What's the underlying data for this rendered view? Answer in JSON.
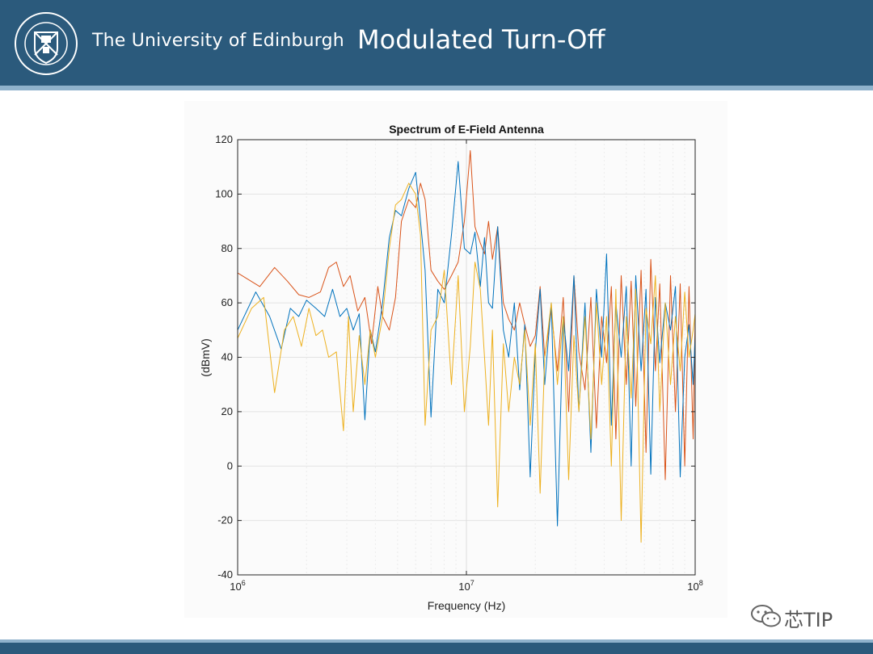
{
  "header": {
    "university_name": "The University of Edinburgh",
    "crest_text": "THE UNIVERSITY OF EDINBURGH",
    "slide_title": "Modulated Turn-Off",
    "bg_color": "#2b5a7c",
    "accent_color": "#8fb2cc"
  },
  "watermark": {
    "text": "芯TIP",
    "icon": "wechat-icon"
  },
  "chart_data": {
    "type": "line",
    "title": "Spectrum of E-Field Antenna",
    "xlabel": "Frequency (Hz)",
    "ylabel": "(dBmV)",
    "xscale": "log",
    "xlim": [
      1000000,
      100000000
    ],
    "ylim": [
      -40,
      120
    ],
    "grid": true,
    "legend": "none",
    "x_ticks": [
      {
        "base": "10",
        "exp": "6"
      },
      {
        "base": "10",
        "exp": "7"
      },
      {
        "base": "10",
        "exp": "8"
      }
    ],
    "y_ticks": [
      "120",
      "100",
      "80",
      "60",
      "40",
      "20",
      "0",
      "-20",
      "-40"
    ],
    "series": [
      {
        "color": "#d95319",
        "x": [
          1000000,
          1250000,
          1450000,
          1650000,
          1850000,
          2050000,
          2300000,
          2500000,
          2700000,
          2900000,
          3100000,
          3350000,
          3600000,
          3850000,
          4100000,
          4300000,
          4600000,
          4900000,
          5200000,
          5600000,
          6000000,
          6300000,
          6600000,
          7000000,
          7500000,
          8000000,
          8600000,
          9200000,
          9800000,
          10400000,
          10900000,
          11500000,
          12000000,
          12500000,
          13000000,
          13700000,
          14500000,
          15300000,
          16200000,
          17100000,
          18000000,
          19000000,
          20000000,
          21000000,
          22000000,
          23500000,
          25000000,
          26500000,
          28000000,
          29500000,
          31000000,
          33000000,
          35000000,
          37000000,
          39000000,
          41000000,
          43000000,
          45000000,
          47500000,
          50000000,
          52500000,
          55000000,
          58000000,
          61000000,
          64000000,
          67000000,
          70000000,
          74000000,
          78000000,
          82000000,
          86000000,
          90000000,
          94000000,
          98000000,
          100000000
        ],
        "y": [
          71,
          66,
          73,
          68,
          63,
          62,
          64,
          73,
          75,
          66,
          70,
          57,
          62,
          45,
          66,
          55,
          50,
          62,
          90,
          98,
          95,
          104,
          98,
          72,
          68,
          65,
          70,
          75,
          90,
          116,
          88,
          82,
          78,
          90,
          76,
          88,
          60,
          54,
          50,
          60,
          52,
          44,
          48,
          66,
          40,
          57,
          35,
          62,
          20,
          70,
          42,
          28,
          62,
          14,
          55,
          38,
          66,
          10,
          70,
          30,
          68,
          22,
          72,
          5,
          76,
          35,
          67,
          -5,
          70,
          20,
          67,
          0,
          66,
          10,
          55
        ]
      },
      {
        "color": "#0072bd",
        "x": [
          1000000,
          1200000,
          1380000,
          1550000,
          1700000,
          1850000,
          2000000,
          2200000,
          2400000,
          2600000,
          2800000,
          3000000,
          3200000,
          3400000,
          3600000,
          3800000,
          4000000,
          4300000,
          4600000,
          4900000,
          5200000,
          5600000,
          6000000,
          6300000,
          6600000,
          7000000,
          7500000,
          8000000,
          8600000,
          9200000,
          9800000,
          10400000,
          10900000,
          11500000,
          12000000,
          12500000,
          13000000,
          13700000,
          14500000,
          15300000,
          16200000,
          17100000,
          18000000,
          19000000,
          20000000,
          21000000,
          22000000,
          23500000,
          25000000,
          26500000,
          28000000,
          29500000,
          31000000,
          33000000,
          35000000,
          37000000,
          39000000,
          41000000,
          43000000,
          45000000,
          47500000,
          50000000,
          52500000,
          55000000,
          58000000,
          61000000,
          64000000,
          67000000,
          70000000,
          74000000,
          78000000,
          82000000,
          86000000,
          90000000,
          94000000,
          98000000,
          100000000
        ],
        "y": [
          50,
          64,
          55,
          43,
          58,
          55,
          61,
          58,
          55,
          65,
          55,
          58,
          50,
          56,
          17,
          50,
          42,
          60,
          84,
          94,
          92,
          102,
          108,
          90,
          72,
          18,
          65,
          60,
          85,
          112,
          80,
          78,
          86,
          66,
          84,
          60,
          58,
          88,
          50,
          40,
          60,
          28,
          52,
          -4,
          42,
          65,
          30,
          60,
          -22,
          55,
          35,
          70,
          20,
          60,
          5,
          65,
          40,
          78,
          15,
          60,
          40,
          66,
          0,
          70,
          35,
          65,
          -3,
          62,
          38,
          60,
          50,
          66,
          -4,
          40,
          52,
          30,
          48
        ]
      },
      {
        "color": "#edb120",
        "x": [
          1000000,
          1150000,
          1300000,
          1450000,
          1600000,
          1750000,
          1900000,
          2050000,
          2200000,
          2350000,
          2500000,
          2700000,
          2900000,
          3050000,
          3200000,
          3400000,
          3600000,
          3800000,
          4000000,
          4300000,
          4600000,
          4900000,
          5200000,
          5600000,
          6000000,
          6300000,
          6600000,
          7000000,
          7500000,
          8000000,
          8600000,
          9200000,
          9800000,
          10400000,
          10900000,
          11500000,
          12000000,
          12500000,
          13000000,
          13700000,
          14500000,
          15300000,
          16200000,
          17100000,
          18000000,
          19000000,
          20000000,
          21000000,
          22000000,
          23500000,
          25000000,
          26500000,
          28000000,
          29500000,
          31000000,
          33000000,
          35000000,
          37000000,
          39000000,
          41000000,
          43000000,
          45000000,
          47500000,
          50000000,
          52500000,
          55000000,
          58000000,
          61000000,
          64000000,
          67000000,
          70000000,
          74000000,
          78000000,
          82000000,
          86000000,
          90000000,
          94000000,
          98000000,
          100000000
        ],
        "y": [
          47,
          58,
          62,
          27,
          50,
          55,
          44,
          58,
          48,
          50,
          40,
          42,
          13,
          55,
          20,
          48,
          30,
          50,
          40,
          55,
          80,
          96,
          98,
          104,
          100,
          85,
          15,
          50,
          55,
          72,
          30,
          70,
          20,
          44,
          75,
          65,
          40,
          15,
          50,
          -15,
          45,
          20,
          40,
          30,
          50,
          15,
          45,
          -10,
          40,
          60,
          30,
          55,
          -5,
          48,
          20,
          55,
          10,
          60,
          30,
          55,
          0,
          65,
          -20,
          55,
          25,
          65,
          -28,
          58,
          45,
          70,
          20,
          60,
          30,
          55,
          35,
          64,
          40,
          50,
          56
        ]
      }
    ]
  }
}
